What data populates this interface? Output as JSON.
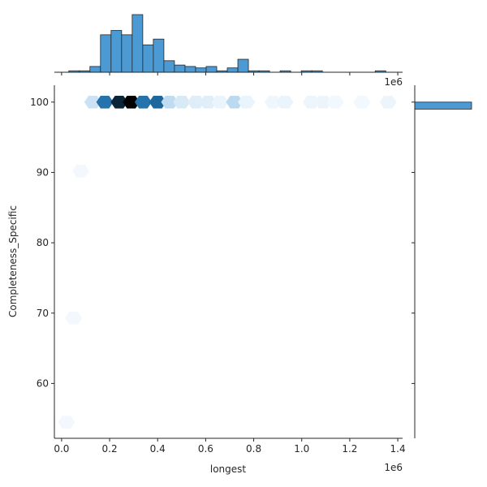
{
  "chart_data": {
    "type": "hexbin-jointplot",
    "xlabel": "longest",
    "ylabel": "Completeness_Specific",
    "x_offset_label": "1e6",
    "top_offset_label": "1e6",
    "xlim": [
      -0.03,
      1.42
    ],
    "ylim": [
      52.2,
      102.4
    ],
    "x_ticks": [
      0.0,
      0.2,
      0.4,
      0.6,
      0.8,
      1.0,
      1.2,
      1.4
    ],
    "x_tick_labels": [
      "0.0",
      "0.2",
      "0.4",
      "0.6",
      "0.8",
      "1.0",
      "1.2",
      "1.4"
    ],
    "y_ticks": [
      60,
      70,
      80,
      90,
      100
    ],
    "y_tick_labels": [
      "60",
      "70",
      "80",
      "90",
      "100"
    ],
    "hexbins": [
      {
        "x": 0.13,
        "y": 100,
        "count": 18
      },
      {
        "x": 0.18,
        "y": 100,
        "count": 68
      },
      {
        "x": 0.24,
        "y": 100,
        "count": 90
      },
      {
        "x": 0.29,
        "y": 100,
        "count": 100
      },
      {
        "x": 0.34,
        "y": 100,
        "count": 68
      },
      {
        "x": 0.4,
        "y": 100,
        "count": 72
      },
      {
        "x": 0.45,
        "y": 100,
        "count": 22
      },
      {
        "x": 0.5,
        "y": 100,
        "count": 12
      },
      {
        "x": 0.56,
        "y": 100,
        "count": 10
      },
      {
        "x": 0.61,
        "y": 100,
        "count": 9
      },
      {
        "x": 0.66,
        "y": 100,
        "count": 5
      },
      {
        "x": 0.72,
        "y": 100,
        "count": 24
      },
      {
        "x": 0.77,
        "y": 100,
        "count": 5
      },
      {
        "x": 0.88,
        "y": 100,
        "count": 3
      },
      {
        "x": 0.93,
        "y": 100,
        "count": 5
      },
      {
        "x": 1.04,
        "y": 100,
        "count": 4
      },
      {
        "x": 1.09,
        "y": 100,
        "count": 4
      },
      {
        "x": 1.14,
        "y": 100,
        "count": 2
      },
      {
        "x": 1.25,
        "y": 100,
        "count": 2
      },
      {
        "x": 1.36,
        "y": 100,
        "count": 4
      },
      {
        "x": 0.08,
        "y": 90.2,
        "count": 2
      },
      {
        "x": 0.05,
        "y": 69.3,
        "count": 2
      },
      {
        "x": 0.02,
        "y": 54.5,
        "count": 2
      }
    ],
    "x_hist": {
      "bin_edges": [
        0.03,
        0.074,
        0.118,
        0.162,
        0.206,
        0.25,
        0.294,
        0.338,
        0.382,
        0.426,
        0.47,
        0.514,
        0.558,
        0.602,
        0.646,
        0.69,
        0.734,
        0.778,
        0.822,
        0.866,
        0.91,
        0.954,
        0.998,
        1.042,
        1.086,
        1.13,
        1.174,
        1.218,
        1.262,
        1.306,
        1.35,
        1.394
      ],
      "counts": [
        1,
        1,
        4,
        26,
        29,
        26,
        40,
        19,
        23,
        8,
        5,
        4,
        3,
        4,
        1,
        3,
        9,
        1,
        1,
        0,
        1,
        0,
        1,
        1,
        0,
        0,
        0,
        0,
        0,
        1,
        0
      ]
    },
    "y_hist": {
      "bin_edges": [
        99.0,
        100.0
      ],
      "counts": [
        250
      ]
    },
    "colors": {
      "histogram": "#4c9ad4",
      "hex_low": "#f7fbff",
      "hex_mid": "#9fcae8",
      "hex_high": "#1f6ea8",
      "hex_max": "#000000",
      "axes": "#262626"
    }
  }
}
